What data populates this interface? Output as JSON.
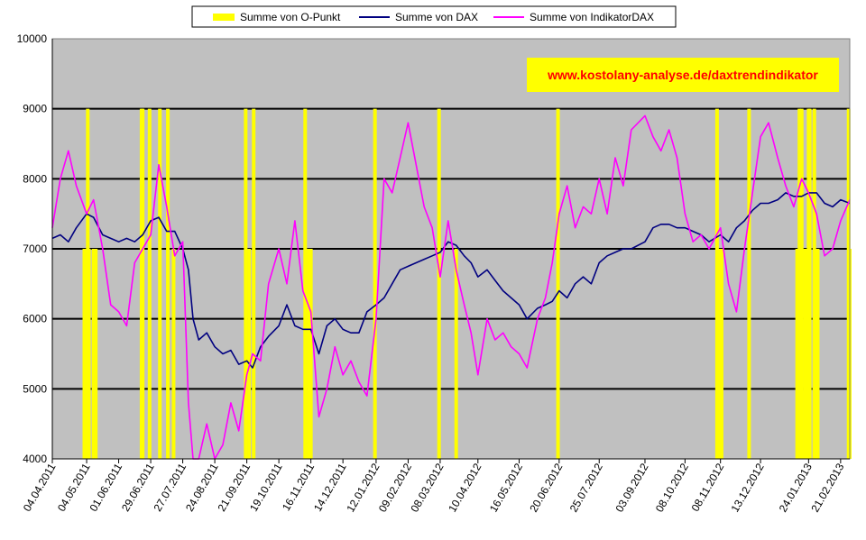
{
  "colors": {
    "plot_bg": "#c0c0c0",
    "opunkt": "#ffff00",
    "dax": "#000080",
    "indikator": "#ff00ff",
    "watermark_bg": "#ffff00",
    "watermark_text": "#ff0000",
    "grid": "#000000"
  },
  "chart_data": {
    "type": "line",
    "title": "",
    "xlabel": "",
    "ylabel": "",
    "ylim": [
      4000,
      10000
    ],
    "yticks": [
      4000,
      5000,
      6000,
      7000,
      8000,
      9000,
      10000
    ],
    "grid": "horizontal",
    "legend_position": "top",
    "watermark": "www.kostolany-analyse.de/daxtrendindikator",
    "x_tick_labels": [
      "04.04.2011",
      "04.05.2011",
      "01.06.2011",
      "29.06.2011",
      "27.07.2011",
      "24.08.2011",
      "21.09.2011",
      "19.10.2011",
      "16.11.2011",
      "14.12.2011",
      "12.01.2012",
      "09.02.2012",
      "08.03.2012",
      "10.04.2012",
      "16.05.2012",
      "20.06.2012",
      "25.07.2012",
      "03.09.2012",
      "08.10.2012",
      "08.11.2012",
      "13.12.2012",
      "24.01.2013",
      "21.02.2013"
    ],
    "series": [
      {
        "name": "Summe von O-Punkt",
        "kind": "bar",
        "x": [
          "02.05.2011",
          "05.05.2011",
          "06.05.2011",
          "10.05.2011",
          "12.05.2011",
          "21.06.2011",
          "22.06.2011",
          "28.06.2011",
          "07.07.2011",
          "14.07.2011",
          "19.07.2011",
          "20.09.2011",
          "23.09.2011",
          "27.09.2011",
          "11.11.2011",
          "14.11.2011",
          "16.11.2011",
          "11.01.2012",
          "07.03.2012",
          "22.03.2012",
          "19.06.2012",
          "05.11.2012",
          "07.11.2012",
          "09.11.2012",
          "03.12.2012",
          "14.01.2013",
          "16.01.2013",
          "18.01.2013",
          "21.01.2013",
          "24.01.2013",
          "25.01.2013",
          "29.01.2013",
          "01.02.2013",
          "28.02.2013",
          "01.03.2013"
        ],
        "values": [
          7000,
          9000,
          7000,
          7000,
          7000,
          9000,
          9000,
          9000,
          9000,
          9000,
          7000,
          9000,
          7000,
          9000,
          9000,
          7000,
          7000,
          9000,
          9000,
          7000,
          9000,
          9000,
          7000,
          7000,
          9000,
          7000,
          9000,
          9000,
          7000,
          9000,
          9000,
          9000,
          7000,
          9000,
          7000
        ]
      },
      {
        "name": "Summe von DAX",
        "kind": "line",
        "x": [
          "04.04.2011",
          "11.04.2011",
          "18.04.2011",
          "25.04.2011",
          "04.05.2011",
          "10.05.2011",
          "18.05.2011",
          "25.05.2011",
          "01.06.2011",
          "08.06.2011",
          "15.06.2011",
          "22.06.2011",
          "29.06.2011",
          "06.07.2011",
          "13.07.2011",
          "20.07.2011",
          "27.07.2011",
          "01.08.2011",
          "05.08.2011",
          "10.08.2011",
          "17.08.2011",
          "24.08.2011",
          "31.08.2011",
          "07.09.2011",
          "14.09.2011",
          "21.09.2011",
          "26.09.2011",
          "03.10.2011",
          "10.10.2011",
          "19.10.2011",
          "26.10.2011",
          "02.11.2011",
          "09.11.2011",
          "16.11.2011",
          "23.11.2011",
          "30.11.2011",
          "07.12.2011",
          "14.12.2011",
          "21.12.2011",
          "28.12.2011",
          "04.01.2012",
          "12.01.2012",
          "19.01.2012",
          "26.01.2012",
          "02.02.2012",
          "09.02.2012",
          "16.02.2012",
          "23.02.2012",
          "01.03.2012",
          "08.03.2012",
          "15.03.2012",
          "22.03.2012",
          "29.03.2012",
          "04.04.2012",
          "10.04.2012",
          "18.04.2012",
          "25.04.2012",
          "02.05.2012",
          "09.05.2012",
          "16.05.2012",
          "23.05.2012",
          "01.06.2012",
          "08.06.2012",
          "14.06.2012",
          "20.06.2012",
          "27.06.2012",
          "04.07.2012",
          "11.07.2012",
          "18.07.2012",
          "25.07.2012",
          "01.08.2012",
          "08.08.2012",
          "15.08.2012",
          "22.08.2012",
          "03.09.2012",
          "10.09.2012",
          "17.09.2012",
          "24.09.2012",
          "01.10.2012",
          "08.10.2012",
          "15.10.2012",
          "22.10.2012",
          "29.10.2012",
          "08.11.2012",
          "15.11.2012",
          "22.11.2012",
          "29.11.2012",
          "06.12.2012",
          "13.12.2012",
          "20.12.2012",
          "28.12.2012",
          "04.01.2013",
          "11.01.2013",
          "18.01.2013",
          "24.01.2013",
          "31.01.2013",
          "07.02.2013",
          "14.02.2013",
          "21.02.2013",
          "01.03.2013"
        ],
        "values": [
          7150,
          7200,
          7100,
          7300,
          7500,
          7450,
          7200,
          7150,
          7100,
          7150,
          7100,
          7200,
          7400,
          7450,
          7250,
          7250,
          7000,
          6700,
          6000,
          5700,
          5800,
          5600,
          5500,
          5550,
          5350,
          5400,
          5300,
          5600,
          5750,
          5900,
          6200,
          5900,
          5850,
          5850,
          5500,
          5900,
          6000,
          5850,
          5800,
          5800,
          6100,
          6200,
          6300,
          6500,
          6700,
          6750,
          6800,
          6850,
          6900,
          6950,
          7100,
          7050,
          6900,
          6800,
          6600,
          6700,
          6550,
          6400,
          6300,
          6200,
          6000,
          6150,
          6200,
          6250,
          6400,
          6300,
          6500,
          6600,
          6500,
          6800,
          6900,
          6950,
          7000,
          7000,
          7100,
          7300,
          7350,
          7350,
          7300,
          7300,
          7250,
          7200,
          7100,
          7200,
          7100,
          7300,
          7400,
          7550,
          7650,
          7650,
          7700,
          7800,
          7750,
          7750,
          7800,
          7800,
          7650,
          7600,
          7700,
          7650
        ]
      },
      {
        "name": "Summe von IndikatorDAX",
        "kind": "line",
        "x": [
          "04.04.2011",
          "11.04.2011",
          "18.04.2011",
          "25.04.2011",
          "04.05.2011",
          "10.05.2011",
          "18.05.2011",
          "25.05.2011",
          "01.06.2011",
          "08.06.2011",
          "15.06.2011",
          "22.06.2011",
          "29.06.2011",
          "06.07.2011",
          "13.07.2011",
          "20.07.2011",
          "27.07.2011",
          "01.08.2011",
          "05.08.2011",
          "10.08.2011",
          "17.08.2011",
          "24.08.2011",
          "31.08.2011",
          "07.09.2011",
          "14.09.2011",
          "21.09.2011",
          "26.09.2011",
          "03.10.2011",
          "10.10.2011",
          "19.10.2011",
          "26.10.2011",
          "02.11.2011",
          "09.11.2011",
          "16.11.2011",
          "23.11.2011",
          "30.11.2011",
          "07.12.2011",
          "14.12.2011",
          "21.12.2011",
          "28.12.2011",
          "04.01.2012",
          "12.01.2012",
          "19.01.2012",
          "26.01.2012",
          "02.02.2012",
          "09.02.2012",
          "16.02.2012",
          "23.02.2012",
          "01.03.2012",
          "08.03.2012",
          "15.03.2012",
          "22.03.2012",
          "29.03.2012",
          "04.04.2012",
          "10.04.2012",
          "18.04.2012",
          "25.04.2012",
          "02.05.2012",
          "09.05.2012",
          "16.05.2012",
          "23.05.2012",
          "01.06.2012",
          "08.06.2012",
          "14.06.2012",
          "20.06.2012",
          "27.06.2012",
          "04.07.2012",
          "11.07.2012",
          "18.07.2012",
          "25.07.2012",
          "01.08.2012",
          "08.08.2012",
          "15.08.2012",
          "22.08.2012",
          "03.09.2012",
          "10.09.2012",
          "17.09.2012",
          "24.09.2012",
          "01.10.2012",
          "08.10.2012",
          "15.10.2012",
          "22.10.2012",
          "29.10.2012",
          "08.11.2012",
          "15.11.2012",
          "22.11.2012",
          "29.11.2012",
          "06.12.2012",
          "13.12.2012",
          "20.12.2012",
          "28.12.2012",
          "04.01.2013",
          "11.01.2013",
          "18.01.2013",
          "24.01.2013",
          "31.01.2013",
          "07.02.2013",
          "14.02.2013",
          "21.02.2013",
          "01.03.2013"
        ],
        "values": [
          7300,
          8000,
          8400,
          7900,
          7500,
          7700,
          7000,
          6200,
          6100,
          5900,
          6800,
          7000,
          7200,
          8200,
          7600,
          6900,
          7100,
          4800,
          4000,
          3900,
          4500,
          4000,
          4200,
          4800,
          4400,
          5200,
          5500,
          5400,
          6500,
          7000,
          6500,
          7400,
          6400,
          6100,
          4600,
          5000,
          5600,
          5200,
          5400,
          5100,
          4900,
          6000,
          8000,
          7800,
          8300,
          8800,
          8200,
          7600,
          7300,
          6600,
          7400,
          6700,
          6200,
          5800,
          5200,
          6000,
          5700,
          5800,
          5600,
          5500,
          5300,
          6000,
          6300,
          6800,
          7500,
          7900,
          7300,
          7600,
          7500,
          8000,
          7500,
          8300,
          7900,
          8700,
          8900,
          8600,
          8400,
          8700,
          8300,
          7500,
          7100,
          7200,
          7000,
          7300,
          6500,
          6100,
          7000,
          7800,
          8600,
          8800,
          8300,
          7900,
          7600,
          8000,
          7800,
          7500,
          6900,
          7000,
          7400,
          7700
        ]
      }
    ]
  }
}
